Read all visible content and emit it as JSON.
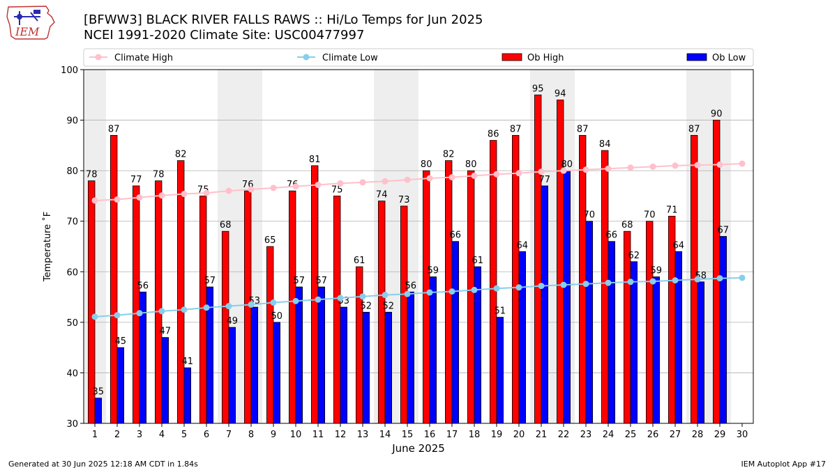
{
  "header": {
    "title_line1": "[BFWW3] BLACK RIVER FALLS RAWS :: Hi/Lo Temps for Jun 2025",
    "title_line2": "NCEI 1991-2020 Climate Site: USC00477997"
  },
  "logo": {
    "text": "IEM",
    "icon": "iem-iowa-logo-icon"
  },
  "footer": {
    "left": "Generated at 30 Jun 2025 12:18 AM CDT in 1.84s",
    "right": "IEM Autoplot App #17"
  },
  "chart_data": {
    "type": "bar",
    "xlabel": "June 2025",
    "ylabel": "Temperature ˚F",
    "ylim": [
      30,
      100
    ],
    "yticks": [
      30,
      40,
      50,
      60,
      70,
      80,
      90,
      100
    ],
    "categories": [
      "1",
      "2",
      "3",
      "4",
      "5",
      "6",
      "7",
      "8",
      "9",
      "10",
      "11",
      "12",
      "13",
      "14",
      "15",
      "16",
      "17",
      "18",
      "19",
      "20",
      "21",
      "22",
      "23",
      "24",
      "25",
      "26",
      "27",
      "28",
      "29",
      "30"
    ],
    "weekend_days": [
      1,
      7,
      8,
      14,
      15,
      21,
      22,
      28,
      29
    ],
    "grid": "horizontal",
    "legend_placement": "top",
    "series": [
      {
        "name": "Climate High",
        "type": "line",
        "color": "#ffc0cb",
        "values": [
          74.1,
          74.3,
          74.7,
          75.1,
          75.4,
          75.6,
          76.0,
          76.3,
          76.6,
          76.9,
          77.2,
          77.5,
          77.7,
          77.9,
          78.2,
          78.5,
          78.7,
          79.0,
          79.3,
          79.5,
          79.8,
          80.0,
          80.2,
          80.4,
          80.6,
          80.8,
          81.0,
          81.1,
          81.2,
          81.4
        ]
      },
      {
        "name": "Climate Low",
        "type": "line",
        "color": "#87ceeb",
        "values": [
          51.1,
          51.4,
          51.8,
          52.2,
          52.5,
          52.9,
          53.2,
          53.5,
          53.9,
          54.2,
          54.5,
          54.8,
          55.1,
          55.4,
          55.6,
          55.9,
          56.1,
          56.4,
          56.7,
          56.9,
          57.2,
          57.4,
          57.6,
          57.8,
          58.0,
          58.1,
          58.3,
          58.5,
          58.7,
          58.8
        ]
      },
      {
        "name": "Ob High",
        "type": "bar",
        "color": "#ff0000",
        "values": [
          78,
          87,
          77,
          78,
          82,
          75,
          68,
          76,
          65,
          76,
          81,
          75,
          61,
          74,
          73,
          80,
          82,
          80,
          86,
          87,
          95,
          94,
          87,
          84,
          68,
          70,
          71,
          87,
          90,
          null
        ]
      },
      {
        "name": "Ob Low",
        "type": "bar",
        "color": "#0000ff",
        "values": [
          35,
          45,
          56,
          47,
          41,
          57,
          49,
          53,
          50,
          57,
          57,
          53,
          52,
          52,
          56,
          59,
          66,
          61,
          51,
          64,
          77,
          80,
          70,
          66,
          62,
          59,
          64,
          58,
          67,
          null
        ]
      }
    ]
  }
}
